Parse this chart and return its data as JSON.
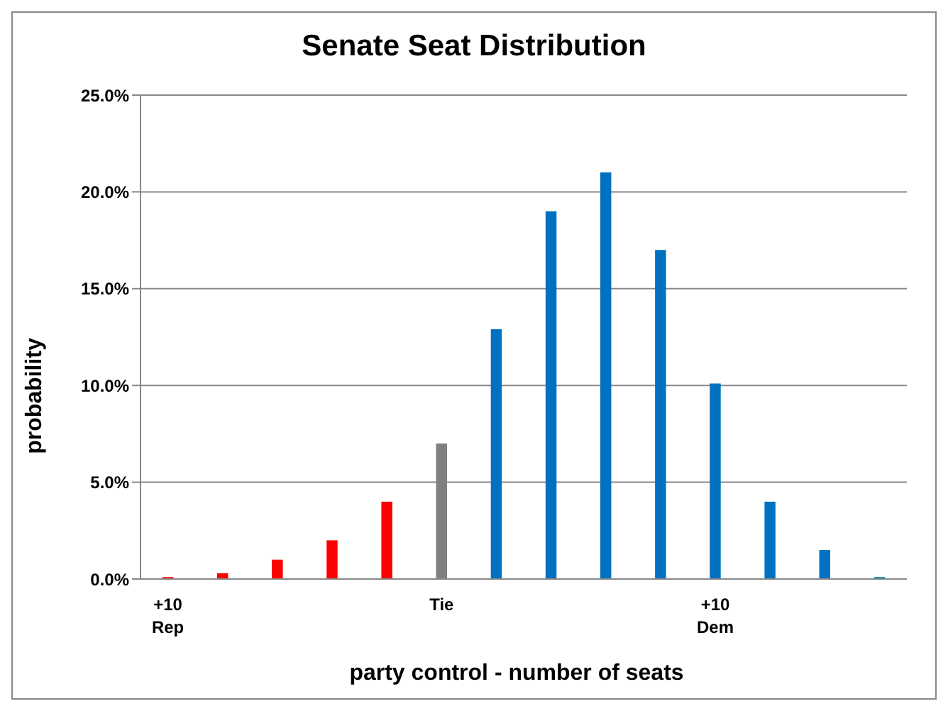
{
  "chart_data": {
    "type": "bar",
    "title": "Senate Seat Distribution",
    "xlabel": "party control - number of seats",
    "ylabel": "probability",
    "categories": [
      "+10\nRep",
      null,
      null,
      null,
      null,
      "Tie",
      null,
      null,
      null,
      null,
      "+10\nDem",
      null,
      null,
      null
    ],
    "values": [
      0.1,
      0.3,
      1.0,
      2.0,
      4.0,
      7.0,
      12.9,
      19.0,
      21.0,
      17.0,
      10.1,
      4.0,
      1.5,
      0.1
    ],
    "colors": [
      "#ff0000",
      "#ff0000",
      "#ff0000",
      "#ff0000",
      "#ff0000",
      "#808080",
      "#0070c0",
      "#0070c0",
      "#0070c0",
      "#0070c0",
      "#0070c0",
      "#0070c0",
      "#0070c0",
      "#0070c0"
    ],
    "ylim": [
      0,
      25
    ],
    "yticks": [
      {
        "value": 0,
        "label": "0.0%"
      },
      {
        "value": 5,
        "label": "5.0%"
      },
      {
        "value": 10,
        "label": "10.0%"
      },
      {
        "value": 15,
        "label": "15.0%"
      },
      {
        "value": 20,
        "label": "20.0%"
      },
      {
        "value": 25,
        "label": "25.0%"
      }
    ],
    "grid": "y",
    "legend": false
  }
}
